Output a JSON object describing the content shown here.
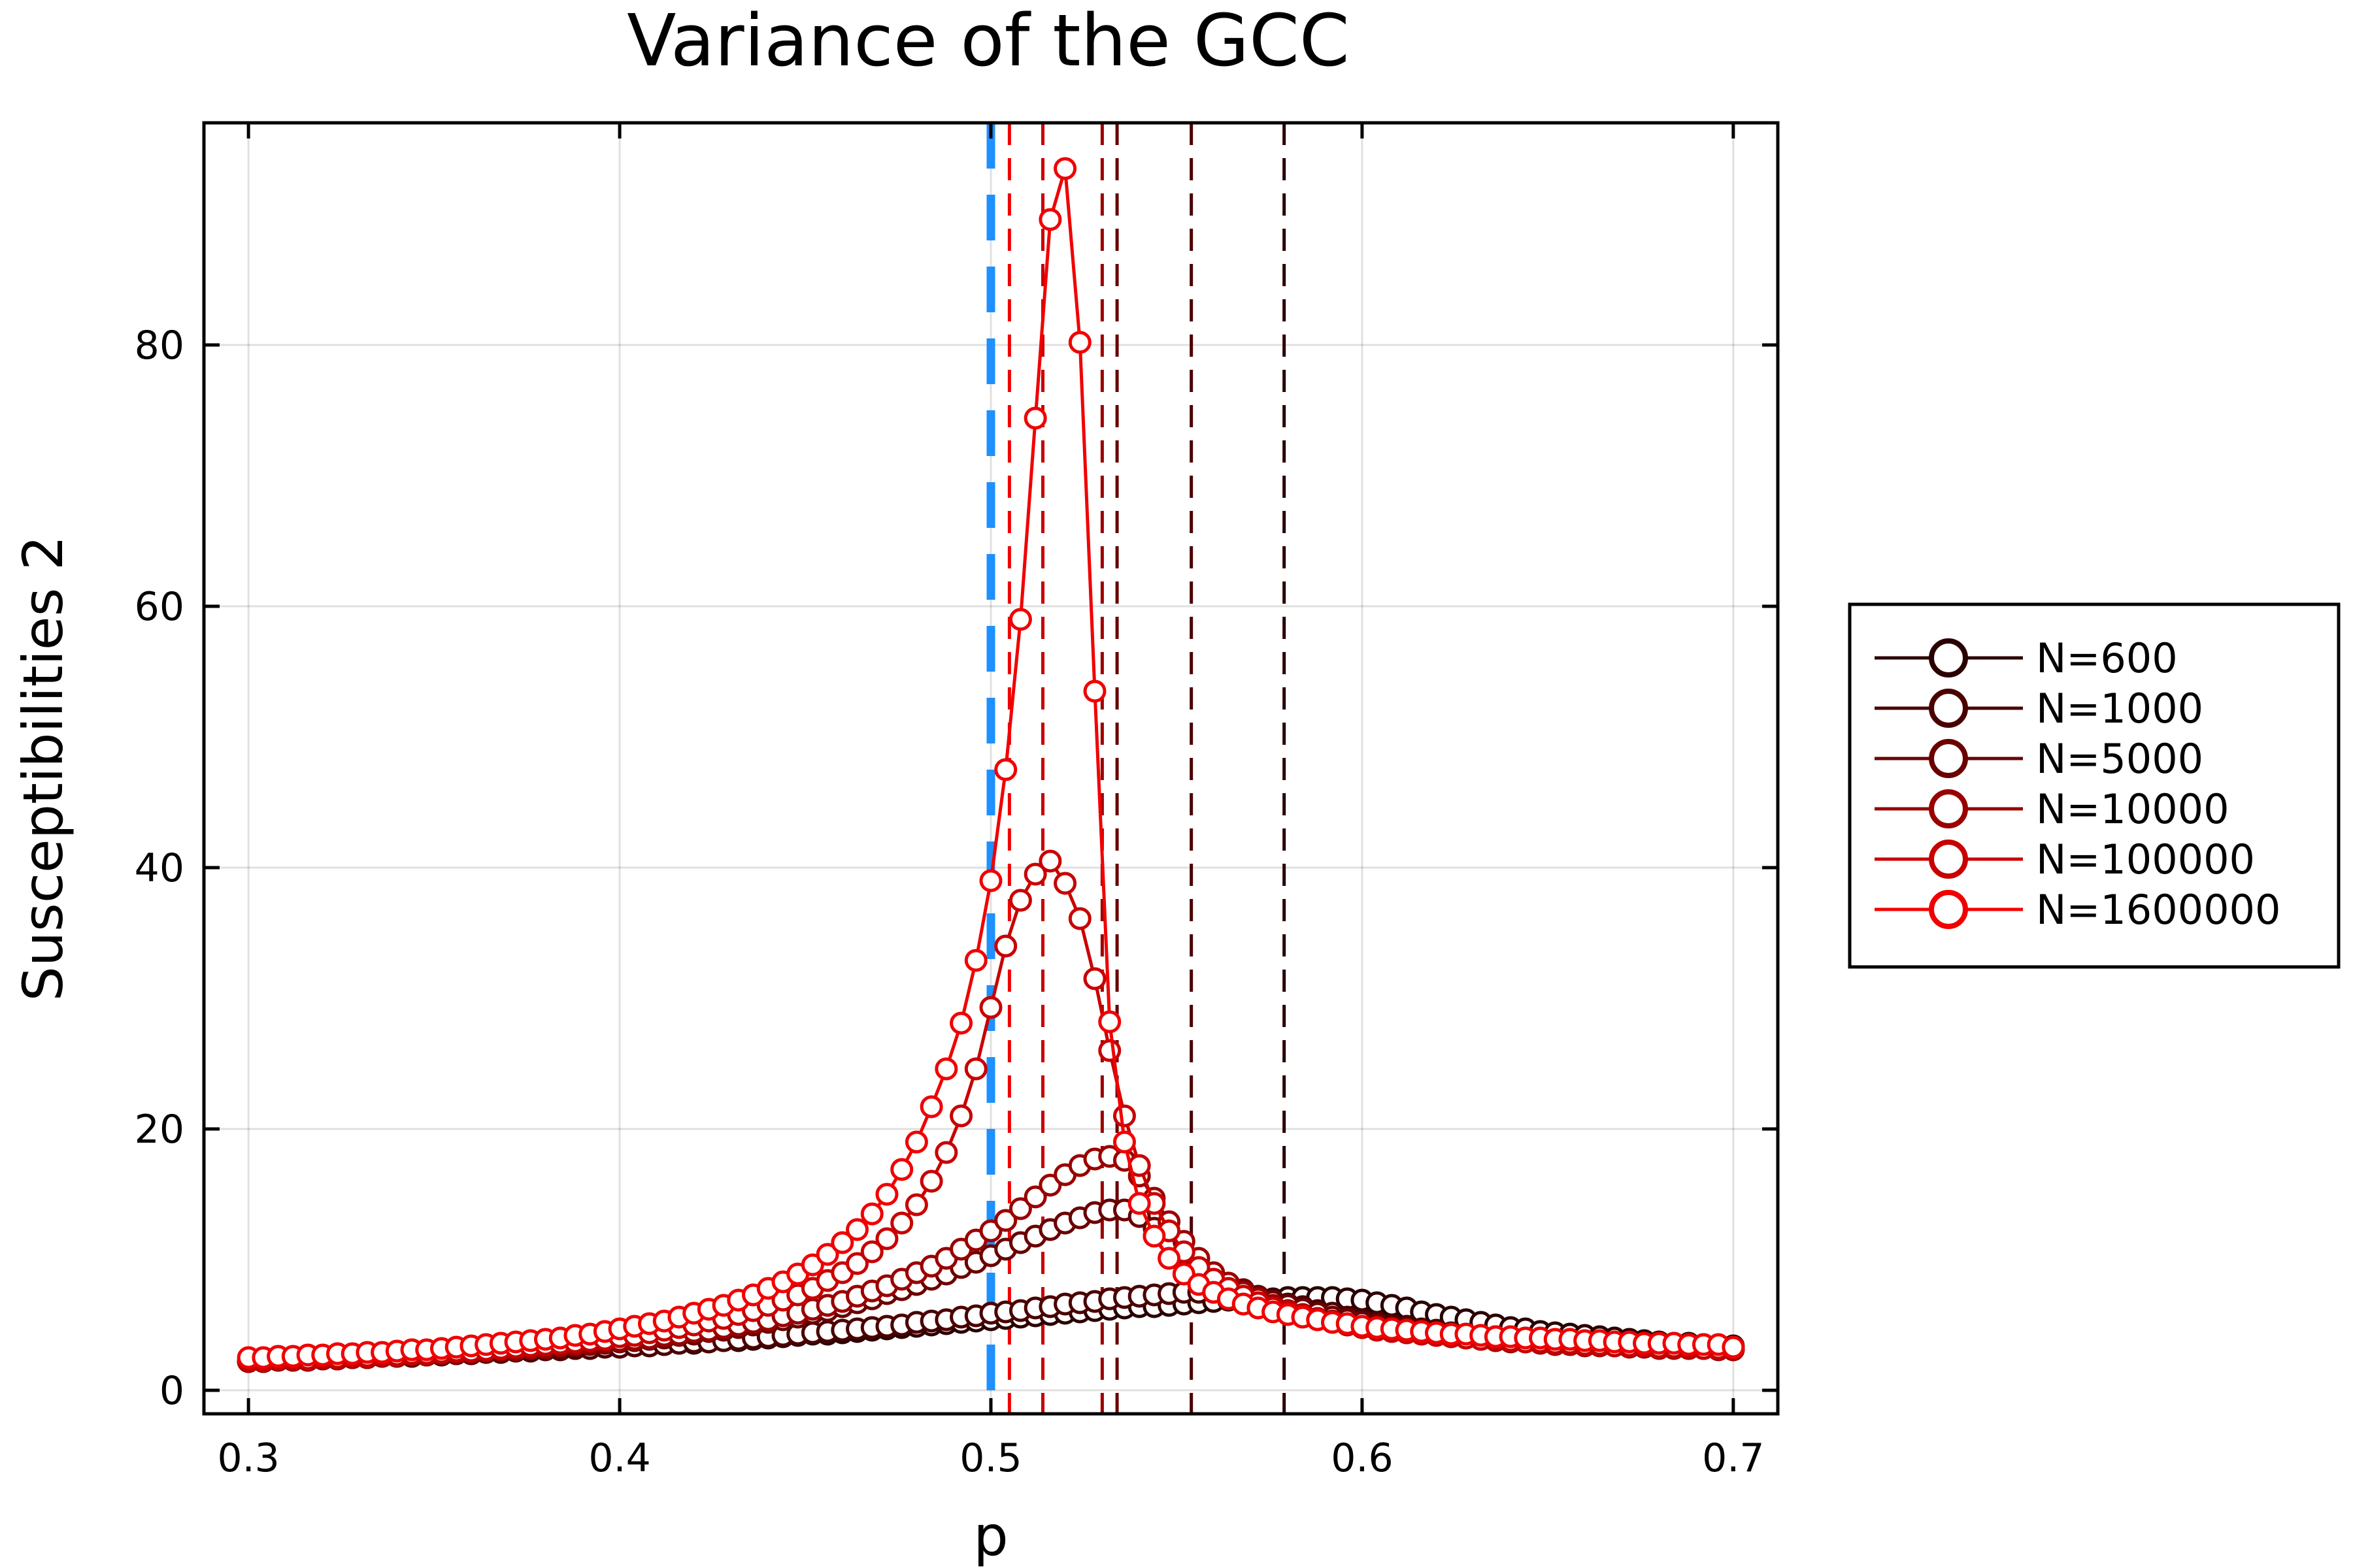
{
  "chart_data": {
    "type": "line",
    "title": "Variance of the GCC",
    "xlabel": "p",
    "ylabel": "Susceptibilities 2",
    "xlim": [
      0.288,
      0.712
    ],
    "ylim": [
      -1.8,
      97
    ],
    "xticks": [
      0.3,
      0.4,
      0.5,
      0.6,
      0.7
    ],
    "xtick_labels": [
      "0.3",
      "0.4",
      "0.5",
      "0.6",
      "0.7"
    ],
    "yticks": [
      0,
      20,
      40,
      60,
      80
    ],
    "ytick_labels": [
      "0",
      "20",
      "40",
      "60",
      "80"
    ],
    "grid": true,
    "legend_position": "right-outside",
    "x": [
      0.3,
      0.304,
      0.308,
      0.312,
      0.316,
      0.32,
      0.324,
      0.328,
      0.332,
      0.336,
      0.34,
      0.344,
      0.348,
      0.352,
      0.356,
      0.36,
      0.364,
      0.368,
      0.372,
      0.376,
      0.38,
      0.384,
      0.388,
      0.392,
      0.396,
      0.4,
      0.404,
      0.408,
      0.412,
      0.416,
      0.42,
      0.424,
      0.428,
      0.432,
      0.436,
      0.44,
      0.444,
      0.448,
      0.452,
      0.456,
      0.46,
      0.464,
      0.468,
      0.472,
      0.476,
      0.48,
      0.484,
      0.488,
      0.492,
      0.496,
      0.5,
      0.504,
      0.508,
      0.512,
      0.516,
      0.52,
      0.524,
      0.528,
      0.532,
      0.536,
      0.54,
      0.544,
      0.548,
      0.552,
      0.556,
      0.56,
      0.564,
      0.568,
      0.572,
      0.576,
      0.58,
      0.584,
      0.588,
      0.592,
      0.596,
      0.6,
      0.604,
      0.608,
      0.612,
      0.616,
      0.62,
      0.624,
      0.628,
      0.632,
      0.636,
      0.64,
      0.644,
      0.648,
      0.652,
      0.656,
      0.66,
      0.664,
      0.668,
      0.672,
      0.676,
      0.68,
      0.684,
      0.688,
      0.692,
      0.696,
      0.7
    ],
    "series": [
      {
        "name": "N=600",
        "color": "#2a0000",
        "values": [
          2.2,
          2.2,
          2.3,
          2.3,
          2.3,
          2.4,
          2.4,
          2.5,
          2.5,
          2.6,
          2.6,
          2.6,
          2.7,
          2.7,
          2.8,
          2.8,
          2.9,
          2.9,
          3.0,
          3.0,
          3.1,
          3.1,
          3.2,
          3.2,
          3.3,
          3.3,
          3.4,
          3.4,
          3.5,
          3.6,
          3.6,
          3.7,
          3.8,
          3.8,
          3.9,
          4.0,
          4.1,
          4.2,
          4.3,
          4.3,
          4.4,
          4.5,
          4.6,
          4.7,
          4.8,
          4.9,
          5.0,
          5.1,
          5.2,
          5.3,
          5.4,
          5.5,
          5.6,
          5.7,
          5.8,
          5.9,
          6.0,
          6.1,
          6.2,
          6.3,
          6.4,
          6.4,
          6.5,
          6.6,
          6.7,
          6.8,
          6.9,
          6.9,
          7.0,
          7.0,
          7.1,
          7.1,
          7.1,
          7.1,
          7.0,
          6.9,
          6.7,
          6.5,
          6.3,
          6.0,
          5.8,
          5.6,
          5.4,
          5.2,
          5.0,
          4.8,
          4.7,
          4.5,
          4.4,
          4.3,
          4.2,
          4.1,
          4.0,
          3.9,
          3.8,
          3.7,
          3.6,
          3.6,
          3.5,
          3.4,
          3.4
        ]
      },
      {
        "name": "N=1000",
        "color": "#4a0000",
        "values": [
          2.2,
          2.2,
          2.3,
          2.3,
          2.3,
          2.4,
          2.4,
          2.5,
          2.5,
          2.6,
          2.6,
          2.6,
          2.7,
          2.7,
          2.8,
          2.8,
          2.9,
          2.9,
          3.0,
          3.0,
          3.1,
          3.1,
          3.2,
          3.2,
          3.3,
          3.3,
          3.4,
          3.4,
          3.5,
          3.6,
          3.7,
          3.7,
          3.8,
          3.9,
          4.0,
          4.1,
          4.2,
          4.3,
          4.4,
          4.5,
          4.6,
          4.7,
          4.8,
          4.9,
          5.0,
          5.2,
          5.3,
          5.4,
          5.6,
          5.7,
          5.9,
          6.0,
          6.1,
          6.3,
          6.4,
          6.6,
          6.7,
          6.8,
          7.0,
          7.1,
          7.2,
          7.3,
          7.4,
          7.5,
          7.5,
          7.5,
          7.4,
          7.3,
          7.1,
          6.9,
          6.6,
          6.4,
          6.1,
          5.9,
          5.6,
          5.4,
          5.2,
          5.0,
          4.9,
          4.7,
          4.6,
          4.4,
          4.3,
          4.2,
          4.1,
          4.0,
          3.9,
          3.8,
          3.8,
          3.7,
          3.6,
          3.6,
          3.5,
          3.5,
          3.4,
          3.4,
          3.3,
          3.3,
          3.2,
          3.2,
          3.2
        ]
      },
      {
        "name": "N=5000",
        "color": "#6a0000",
        "values": [
          2.2,
          2.2,
          2.3,
          2.3,
          2.3,
          2.4,
          2.4,
          2.5,
          2.5,
          2.6,
          2.6,
          2.7,
          2.7,
          2.8,
          2.8,
          2.9,
          3.0,
          3.0,
          3.1,
          3.2,
          3.2,
          3.3,
          3.4,
          3.5,
          3.6,
          3.7,
          3.8,
          3.9,
          4.0,
          4.2,
          4.3,
          4.5,
          4.6,
          4.8,
          5.0,
          5.2,
          5.4,
          5.6,
          5.9,
          6.1,
          6.4,
          6.7,
          7.0,
          7.4,
          7.7,
          8.1,
          8.5,
          8.9,
          9.4,
          9.8,
          10.3,
          10.8,
          11.3,
          11.8,
          12.3,
          12.8,
          13.2,
          13.6,
          13.8,
          13.8,
          13.3,
          12.4,
          11.4,
          10.4,
          9.5,
          8.8,
          8.2,
          7.7,
          7.2,
          6.8,
          6.5,
          6.2,
          5.9,
          5.6,
          5.4,
          5.2,
          5.0,
          4.8,
          4.7,
          4.5,
          4.4,
          4.3,
          4.2,
          4.1,
          4.0,
          3.9,
          3.8,
          3.7,
          3.7,
          3.6,
          3.5,
          3.5,
          3.4,
          3.4,
          3.3,
          3.3,
          3.3,
          3.2,
          3.2,
          3.2,
          3.1
        ]
      },
      {
        "name": "N=10000",
        "color": "#9a0000",
        "values": [
          2.2,
          2.2,
          2.3,
          2.3,
          2.3,
          2.4,
          2.4,
          2.5,
          2.5,
          2.6,
          2.6,
          2.7,
          2.7,
          2.8,
          2.9,
          2.9,
          3.0,
          3.1,
          3.1,
          3.2,
          3.3,
          3.4,
          3.5,
          3.6,
          3.7,
          3.8,
          3.9,
          4.0,
          4.2,
          4.3,
          4.5,
          4.6,
          4.8,
          5.0,
          5.2,
          5.4,
          5.7,
          5.9,
          6.2,
          6.5,
          6.8,
          7.2,
          7.6,
          8.0,
          8.5,
          9.0,
          9.5,
          10.1,
          10.8,
          11.5,
          12.2,
          13.0,
          13.9,
          14.8,
          15.7,
          16.5,
          17.2,
          17.7,
          17.9,
          17.6,
          16.4,
          14.7,
          12.9,
          11.4,
          10.1,
          9.0,
          8.2,
          7.5,
          7.0,
          6.5,
          6.1,
          5.8,
          5.5,
          5.3,
          5.0,
          4.8,
          4.7,
          4.5,
          4.4,
          4.3,
          4.2,
          4.1,
          4.0,
          3.9,
          3.8,
          3.7,
          3.7,
          3.6,
          3.5,
          3.5,
          3.4,
          3.4,
          3.4,
          3.3,
          3.3,
          3.2,
          3.2,
          3.2,
          3.2,
          3.1,
          3.1
        ]
      },
      {
        "name": "N=100000",
        "color": "#c80000",
        "values": [
          2.3,
          2.3,
          2.4,
          2.4,
          2.4,
          2.5,
          2.5,
          2.6,
          2.6,
          2.7,
          2.7,
          2.8,
          2.8,
          2.9,
          3.0,
          3.0,
          3.1,
          3.2,
          3.3,
          3.4,
          3.5,
          3.6,
          3.7,
          3.8,
          3.9,
          4.1,
          4.2,
          4.4,
          4.6,
          4.8,
          5.0,
          5.3,
          5.5,
          5.8,
          6.1,
          6.5,
          6.9,
          7.3,
          7.8,
          8.4,
          9.0,
          9.7,
          10.6,
          11.6,
          12.8,
          14.2,
          16.0,
          18.2,
          21.0,
          24.6,
          29.3,
          34.0,
          37.5,
          39.5,
          40.5,
          38.8,
          36.1,
          31.5,
          26.0,
          21.0,
          17.2,
          14.3,
          12.2,
          10.6,
          9.4,
          8.5,
          7.8,
          7.2,
          6.7,
          6.3,
          6.0,
          5.7,
          5.4,
          5.2,
          5.0,
          4.8,
          4.6,
          4.5,
          4.4,
          4.3,
          4.2,
          4.1,
          4.0,
          3.9,
          3.9,
          3.8,
          3.7,
          3.7,
          3.6,
          3.6,
          3.5,
          3.5,
          3.4,
          3.4,
          3.4,
          3.3,
          3.3,
          3.3,
          3.2,
          3.2,
          3.2
        ]
      },
      {
        "name": "N=1600000",
        "color": "#f00000",
        "values": [
          2.5,
          2.5,
          2.6,
          2.6,
          2.7,
          2.7,
          2.8,
          2.8,
          2.9,
          2.9,
          3.0,
          3.1,
          3.1,
          3.2,
          3.3,
          3.4,
          3.5,
          3.6,
          3.7,
          3.8,
          3.9,
          4.0,
          4.2,
          4.3,
          4.5,
          4.7,
          4.9,
          5.1,
          5.3,
          5.6,
          5.9,
          6.2,
          6.5,
          6.9,
          7.3,
          7.8,
          8.3,
          8.9,
          9.6,
          10.4,
          11.3,
          12.3,
          13.5,
          15.0,
          16.9,
          19.0,
          21.7,
          24.6,
          28.1,
          32.9,
          39.0,
          47.5,
          59.0,
          74.4,
          89.6,
          93.5,
          80.2,
          53.5,
          28.2,
          19.0,
          14.3,
          11.8,
          10.1,
          8.9,
          8.1,
          7.5,
          7.0,
          6.6,
          6.3,
          6.0,
          5.8,
          5.6,
          5.4,
          5.2,
          5.1,
          4.9,
          4.8,
          4.7,
          4.6,
          4.5,
          4.4,
          4.3,
          4.3,
          4.2,
          4.1,
          4.1,
          4.0,
          4.0,
          3.9,
          3.9,
          3.8,
          3.8,
          3.7,
          3.7,
          3.6,
          3.6,
          3.6,
          3.5,
          3.5,
          3.5,
          3.3
        ]
      }
    ],
    "vlines": [
      {
        "x": 0.5,
        "color": "#1e90ff",
        "style": "dash-thick"
      },
      {
        "x": 0.505,
        "color": "#f00000",
        "style": "dash"
      },
      {
        "x": 0.514,
        "color": "#c80000",
        "style": "dash"
      },
      {
        "x": 0.53,
        "color": "#9a0000",
        "style": "dash"
      },
      {
        "x": 0.534,
        "color": "#6a0000",
        "style": "dash"
      },
      {
        "x": 0.554,
        "color": "#4a0000",
        "style": "dash"
      },
      {
        "x": 0.579,
        "color": "#2a0000",
        "style": "dash"
      }
    ]
  }
}
